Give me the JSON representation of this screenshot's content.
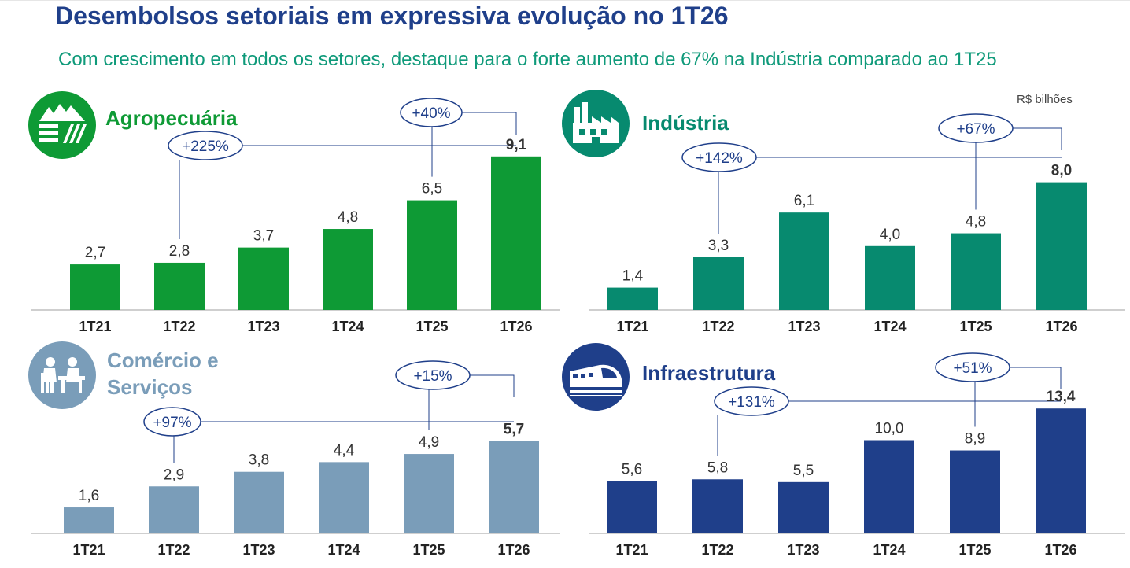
{
  "header": {
    "title": "Desembolsos setoriais em expressiva evolução no 1T26",
    "subtitle": "Com crescimento em todos os setores, destaque para o forte aumento de 67% na Indústria comparado ao 1T25",
    "unit_note": "R$ bilhões"
  },
  "panels": [
    {
      "label": "Agropecuária",
      "color": "#0e9a35",
      "icon": "farm-fields-icon",
      "growth_long": "+225%",
      "growth_short": "+40%"
    },
    {
      "label": "Indústria",
      "color": "#078a6f",
      "icon": "factory-icon",
      "growth_long": "+142%",
      "growth_short": "+67%"
    },
    {
      "label_line1": "Comércio e",
      "label_line2": "Serviços",
      "color": "#7a9db9",
      "icon": "office-meeting-icon",
      "growth_long": "+97%",
      "growth_short": "+15%"
    },
    {
      "label": "Infraestrutura",
      "color": "#1f3f8a",
      "icon": "train-icon",
      "growth_long": "+131%",
      "growth_short": "+51%"
    }
  ],
  "chart_data": [
    {
      "type": "bar",
      "title": "Agropecuária",
      "categories": [
        "1T21",
        "1T22",
        "1T23",
        "1T24",
        "1T25",
        "1T26"
      ],
      "values": [
        2.7,
        2.8,
        3.7,
        4.8,
        6.5,
        9.1
      ],
      "value_labels": [
        "2,7",
        "2,8",
        "3,7",
        "4,8",
        "6,5",
        "9,1"
      ],
      "highlight_last": true,
      "annotations": [
        "+225%",
        "+40%"
      ],
      "color": "#0e9a35"
    },
    {
      "type": "bar",
      "title": "Indústria",
      "categories": [
        "1T21",
        "1T22",
        "1T23",
        "1T24",
        "1T25",
        "1T26"
      ],
      "values": [
        1.4,
        3.3,
        6.1,
        4.0,
        4.8,
        8.0
      ],
      "value_labels": [
        "1,4",
        "3,3",
        "6,1",
        "4,0",
        "4,8",
        "8,0"
      ],
      "highlight_last": true,
      "annotations": [
        "+142%",
        "+67%"
      ],
      "color": "#078a6f"
    },
    {
      "type": "bar",
      "title": "Comércio e Serviços",
      "categories": [
        "1T21",
        "1T22",
        "1T23",
        "1T24",
        "1T25",
        "1T26"
      ],
      "values": [
        1.6,
        2.9,
        3.8,
        4.4,
        4.9,
        5.7
      ],
      "value_labels": [
        "1,6",
        "2,9",
        "3,8",
        "4,4",
        "4,9",
        "5,7"
      ],
      "highlight_last": true,
      "annotations": [
        "+97%",
        "+15%"
      ],
      "color": "#7a9db9"
    },
    {
      "type": "bar",
      "title": "Infraestrutura",
      "categories": [
        "1T21",
        "1T22",
        "1T23",
        "1T24",
        "1T25",
        "1T26"
      ],
      "values": [
        5.6,
        5.8,
        5.5,
        10.0,
        8.9,
        13.4
      ],
      "value_labels": [
        "5,6",
        "5,8",
        "5,5",
        "10,0",
        "8,9",
        "13,4"
      ],
      "highlight_last": true,
      "annotations": [
        "+131%",
        "+51%"
      ],
      "color": "#1f3f8a"
    }
  ]
}
